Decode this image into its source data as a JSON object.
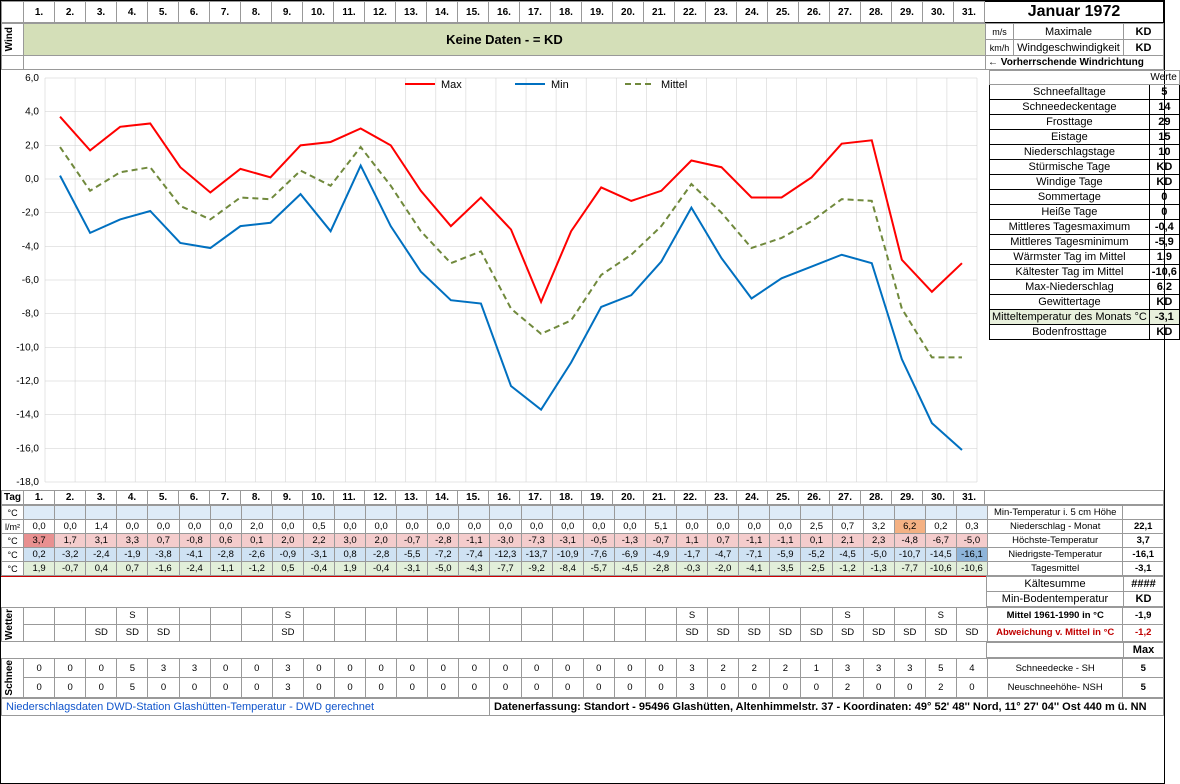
{
  "title": "Januar 1972",
  "wind_label": "Wind",
  "wind_band_text": "Keine Daten -  = KD",
  "wind_rows": [
    {
      "u": "m/s",
      "l": "Maximale",
      "v": "KD"
    },
    {
      "u": "km/h",
      "l": "Windgeschwindigkeit",
      "v": "KD"
    }
  ],
  "wind_dir": "← Vorherrschende Windrichtung",
  "werte": "Werte",
  "days": [
    "1.",
    "2.",
    "3.",
    "4.",
    "5.",
    "6.",
    "7.",
    "8.",
    "9.",
    "10.",
    "11.",
    "12.",
    "13.",
    "14.",
    "15.",
    "16.",
    "17.",
    "18.",
    "19.",
    "20.",
    "21.",
    "22.",
    "23.",
    "24.",
    "25.",
    "26.",
    "27.",
    "28.",
    "29.",
    "30.",
    "31."
  ],
  "chart": {
    "ylim": [
      -18,
      6
    ],
    "yticks": [
      -18,
      -16,
      -14,
      -12,
      -10,
      -8,
      -6,
      -4,
      -2,
      0,
      2,
      4,
      6
    ],
    "legend": [
      {
        "l": "Max",
        "c": "#ff0000",
        "d": "none"
      },
      {
        "l": "Min",
        "c": "#0070c0",
        "d": "none"
      },
      {
        "l": "Mittel",
        "c": "#70893c",
        "d": "6,4"
      }
    ],
    "max": [
      3.7,
      1.7,
      3.1,
      3.3,
      0.7,
      -0.8,
      0.6,
      0.1,
      2.0,
      2.2,
      3.0,
      2.0,
      -0.7,
      -2.8,
      -1.1,
      -3.0,
      -7.3,
      -3.1,
      -0.5,
      -1.3,
      -0.7,
      1.1,
      0.7,
      -1.1,
      -1.1,
      0.1,
      2.1,
      2.3,
      -4.8,
      -6.7,
      -5.0
    ],
    "min": [
      0.2,
      -3.2,
      -2.4,
      -1.9,
      -3.8,
      -4.1,
      -2.8,
      -2.6,
      -0.9,
      -3.1,
      0.8,
      -2.8,
      -5.5,
      -7.2,
      -7.4,
      -12.3,
      -13.7,
      -10.9,
      -7.6,
      -6.9,
      -4.9,
      -1.7,
      -4.7,
      -7.1,
      -5.9,
      -5.2,
      -4.5,
      -5.0,
      -10.7,
      -14.5,
      -16.1
    ],
    "mit": [
      1.9,
      -0.7,
      0.4,
      0.7,
      -1.6,
      -2.4,
      -1.1,
      -1.2,
      0.5,
      -0.4,
      1.9,
      -0.4,
      -3.1,
      -5.0,
      -4.3,
      -7.7,
      -9.2,
      -8.4,
      -5.7,
      -4.5,
      -2.8,
      -0.3,
      -2.0,
      -4.1,
      -3.5,
      -2.5,
      -1.2,
      -1.3,
      -7.7,
      -10.6,
      -10.6
    ],
    "line_w": 2
  },
  "stats": [
    {
      "l": "Schneefalltage",
      "v": "5"
    },
    {
      "l": "Schneedeckentage",
      "v": "14"
    },
    {
      "l": "Frosttage",
      "v": "29"
    },
    {
      "l": "Eistage",
      "v": "15"
    },
    {
      "l": "Niederschlagstage",
      "v": "10"
    },
    {
      "l": "Stürmische Tage",
      "v": "KD"
    },
    {
      "l": "Windige Tage",
      "v": "KD"
    },
    {
      "l": "Sommertage",
      "v": "0"
    },
    {
      "l": "Heiße Tage",
      "v": "0"
    },
    {
      "l": "Mittleres Tagesmaximum",
      "v": "-0,4"
    },
    {
      "l": "Mittleres Tagesminimum",
      "v": "-5,9"
    },
    {
      "l": "Wärmster Tag im Mittel",
      "v": "1,9"
    },
    {
      "l": "Kältester Tag im Mittel",
      "v": "-10,6"
    },
    {
      "l": "Max-Niederschlag",
      "v": "6,2"
    },
    {
      "l": "Gewittertage",
      "v": "KD"
    },
    {
      "l": "Mitteltemperatur des Monats °C",
      "v": "-3,1",
      "bg": "#e8f0dc"
    },
    {
      "l": "Bodenfrosttage",
      "v": "KD"
    }
  ],
  "tag_label": "Tag",
  "data_rows": [
    {
      "u": "°C",
      "label": "Min-Temperatur i. 5 cm Höhe",
      "bg": "#deebf7",
      "cells": [
        "",
        "",
        "",
        "",
        "",
        "",
        "",
        "",
        "",
        "",
        "",
        "",
        "",
        "",
        "",
        "",
        "",
        "",
        "",
        "",
        "",
        "",
        "",
        "",
        "",
        "",
        "",
        "",
        "",
        "",
        ""
      ]
    },
    {
      "u": "l/m²",
      "label": "Niederschlag - Monat",
      "v": "22,1",
      "cells": [
        "0,0",
        "0,0",
        "1,4",
        "0,0",
        "0,0",
        "0,0",
        "0,0",
        "2,0",
        "0,0",
        "0,5",
        "0,0",
        "0,0",
        "0,0",
        "0,0",
        "0,0",
        "0,0",
        "0,0",
        "0,0",
        "0,0",
        "0,0",
        "5,1",
        "0,0",
        "0,0",
        "0,0",
        "0,0",
        "2,5",
        "0,7",
        "3,2",
        "6,2",
        "0,2",
        "0,3"
      ],
      "hi": {
        "28": "#f4b183"
      }
    },
    {
      "u": "°C",
      "label": "Höchste-Temperatur",
      "v": "3,7",
      "bg": "#f4cccc",
      "cells": [
        "3,7",
        "1,7",
        "3,1",
        "3,3",
        "0,7",
        "-0,8",
        "0,6",
        "0,1",
        "2,0",
        "2,2",
        "3,0",
        "2,0",
        "-0,7",
        "-2,8",
        "-1,1",
        "-3,0",
        "-7,3",
        "-3,1",
        "-0,5",
        "-1,3",
        "-0,7",
        "1,1",
        "0,7",
        "-1,1",
        "-1,1",
        "0,1",
        "2,1",
        "2,3",
        "-4,8",
        "-6,7",
        "-5,0"
      ],
      "hi": {
        "0": "#e89090"
      }
    },
    {
      "u": "°C",
      "label": "Niedrigste-Temperatur",
      "v": "-16,1",
      "bg": "#cfe2f3",
      "cells": [
        "0,2",
        "-3,2",
        "-2,4",
        "-1,9",
        "-3,8",
        "-4,1",
        "-2,8",
        "-2,6",
        "-0,9",
        "-3,1",
        "0,8",
        "-2,8",
        "-5,5",
        "-7,2",
        "-7,4",
        "-12,3",
        "-13,7",
        "-10,9",
        "-7,6",
        "-6,9",
        "-4,9",
        "-1,7",
        "-4,7",
        "-7,1",
        "-5,9",
        "-5,2",
        "-4,5",
        "-5,0",
        "-10,7",
        "-14,5",
        "-16,1"
      ],
      "hi": {
        "30": "#8eb4d9"
      }
    },
    {
      "u": "°C",
      "label": "Tagesmittel",
      "v": "-3,1",
      "bg": "#e2efda",
      "cells": [
        "1,9",
        "-0,7",
        "0,4",
        "0,7",
        "-1,6",
        "-2,4",
        "-1,1",
        "-1,2",
        "0,5",
        "-0,4",
        "1,9",
        "-0,4",
        "-3,1",
        "-5,0",
        "-4,3",
        "-7,7",
        "-9,2",
        "-8,4",
        "-5,7",
        "-4,5",
        "-2,8",
        "-0,3",
        "-2,0",
        "-4,1",
        "-3,5",
        "-2,5",
        "-1,2",
        "-1,3",
        "-7,7",
        "-10,6",
        "-10,6"
      ]
    }
  ],
  "extra_stats": [
    {
      "l": "Kältesumme",
      "v": "####"
    },
    {
      "l": "Min-Bodentemperatur",
      "v": "KD"
    }
  ],
  "wetter_label": "Wetter",
  "wetter_rows": [
    {
      "cells": [
        "",
        "",
        "",
        "S",
        "",
        "",
        "",
        "",
        "S",
        "",
        "",
        "",
        "",
        "",
        "",
        "",
        "",
        "",
        "",
        "",
        "",
        "S",
        "",
        "",
        "",
        "",
        "S",
        "",
        "",
        "S",
        ""
      ],
      "l": "Mittel 1961-1990 in °C",
      "v": "-1,9"
    },
    {
      "cells": [
        "",
        "",
        "SD",
        "SD",
        "SD",
        "",
        "",
        "",
        "SD",
        "",
        "",
        "",
        "",
        "",
        "",
        "",
        "",
        "",
        "",
        "",
        "",
        "SD",
        "SD",
        "SD",
        "SD",
        "SD",
        "SD",
        "SD",
        "SD",
        "SD",
        "SD"
      ],
      "l": "Abweichung v. Mittel in °C",
      "v": "-1,2",
      "red": true
    }
  ],
  "max_label": "Max",
  "schnee_label": "Schnee",
  "schnee_rows": [
    {
      "cells": [
        "0",
        "0",
        "0",
        "5",
        "3",
        "3",
        "0",
        "0",
        "3",
        "0",
        "0",
        "0",
        "0",
        "0",
        "0",
        "0",
        "0",
        "0",
        "0",
        "0",
        "0",
        "3",
        "2",
        "2",
        "2",
        "1",
        "3",
        "3",
        "3",
        "5",
        "4"
      ],
      "l": "Schneedecke -   SH",
      "v": "5"
    },
    {
      "cells": [
        "0",
        "0",
        "0",
        "5",
        "0",
        "0",
        "0",
        "0",
        "3",
        "0",
        "0",
        "0",
        "0",
        "0",
        "0",
        "0",
        "0",
        "0",
        "0",
        "0",
        "0",
        "3",
        "0",
        "0",
        "0",
        "0",
        "2",
        "0",
        "0",
        "2",
        "0"
      ],
      "l": "Neuschneehöhe- NSH",
      "v": "5"
    }
  ],
  "footer_left": "Niederschlagsdaten DWD-Station Glashütten-Temperatur -  DWD gerechnet",
  "footer_right": "Datenerfassung:  Standort -  95496  Glashütten, Altenhimmelstr. 37 - Koordinaten:  49° 52' 48'' Nord,   11° 27' 04'' Ost   440 m ü. NN"
}
